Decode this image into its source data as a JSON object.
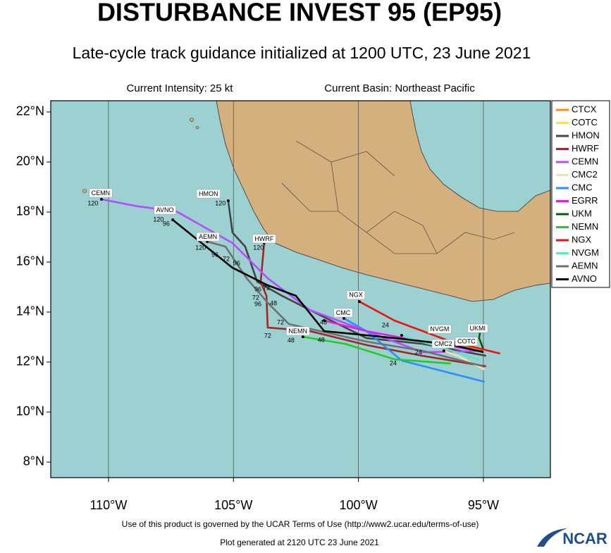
{
  "chart_data": {
    "type": "track",
    "title": "DISTURBANCE INVEST 95 (EP95)",
    "subtitle": "Late-cycle track guidance initialized at 1200 UTC, 23 June 2021",
    "intensity": "Current Intensity: 25 kt",
    "basin": "Current Basin: Northeast Pacific",
    "footer": "Use of this product is governed by the UCAR Terms of Use (http://www2.ucar.edu/terms-of-use)",
    "generated": "Plot generated at 2120 UTC  23 June 2021",
    "logo": "NCAR",
    "legend": "right",
    "xlim": [
      -112.31,
      -92.32
    ],
    "ylim": [
      7.38,
      22.45
    ],
    "xticks": [
      {
        "value": -110,
        "label": "110°W"
      },
      {
        "value": -105,
        "label": "105°W"
      },
      {
        "value": -100,
        "label": "100°W"
      },
      {
        "value": -95,
        "label": "95°W"
      }
    ],
    "yticks": [
      {
        "value": 8,
        "label": "8°N"
      },
      {
        "value": 10,
        "label": "10°N"
      },
      {
        "value": 12,
        "label": "12°N"
      },
      {
        "value": 14,
        "label": "14°N"
      },
      {
        "value": 16,
        "label": "16°N"
      },
      {
        "value": 18,
        "label": "18°N"
      },
      {
        "value": 20,
        "label": "20°N"
      },
      {
        "value": 22,
        "label": "22°N"
      }
    ],
    "series": [
      {
        "name": "CTCX",
        "color": "#ff8c1a",
        "x": [
          -95.0,
          -96.0,
          -96.24
        ],
        "values": [
          12.45,
          12.68,
          12.73
        ]
      },
      {
        "name": "COTC",
        "color": "#ffee00",
        "x": [
          -94.95,
          -95.74,
          -95.88
        ],
        "values": [
          12.45,
          12.68,
          12.87
        ]
      },
      {
        "name": "HMON",
        "color": "#444444",
        "x": [
          -94.89,
          -97.43,
          -99.68,
          -101.66,
          -103.06,
          -104.05,
          -104.53,
          -105.04,
          -105.21
        ],
        "values": [
          12.25,
          12.73,
          12.96,
          13.94,
          14.65,
          15.21,
          16.62,
          17.18,
          18.45
        ]
      },
      {
        "name": "HWRF",
        "color": "#9c2a2a",
        "x": [
          -94.89,
          -97.43,
          -99.68,
          -101.94,
          -103.63,
          -103.68,
          -103.91,
          -103.77
        ],
        "values": [
          11.83,
          12.25,
          12.68,
          13.24,
          13.38,
          14.65,
          15.21,
          16.76
        ]
      },
      {
        "name": "CEMN",
        "color": "#b44cff",
        "x": [
          -95.0,
          -97.43,
          -99.68,
          -101.94,
          -103.63,
          -105.04,
          -107.29,
          -108.84,
          -110.28
        ],
        "values": [
          12.45,
          12.39,
          13.24,
          14.08,
          15.35,
          16.76,
          18.03,
          18.23,
          18.51
        ]
      },
      {
        "name": "CMC2",
        "color": "#f5deb3",
        "x": [
          -94.95,
          -96.02,
          -96.58
        ],
        "values": [
          11.7,
          12.25,
          12.45
        ]
      },
      {
        "name": "CMC",
        "color": "#2b8fff",
        "x": [
          -94.95,
          -98.27,
          -99.68,
          -100.58
        ],
        "values": [
          11.21,
          12.06,
          13.24,
          13.75
        ]
      },
      {
        "name": "EGRR",
        "color": "#e020e0",
        "x": [
          -95.0,
          -97.43,
          -99.68,
          -101.37
        ],
        "values": [
          12.42,
          12.82,
          13.24,
          13.66
        ]
      },
      {
        "name": "UKM",
        "color": "#0b5a0b",
        "x": [
          -95.0,
          -95.17,
          -95.12
        ],
        "values": [
          12.51,
          12.96,
          13.3
        ]
      },
      {
        "name": "NEMN",
        "color": "#22cc22",
        "x": [
          -96.3,
          -98.55,
          -100.53,
          -102.22
        ],
        "values": [
          11.94,
          12.11,
          12.73,
          13.01
        ]
      },
      {
        "name": "NGX",
        "color": "#ee1111",
        "x": [
          -94.33,
          -96.3,
          -98.55,
          -99.96
        ],
        "values": [
          12.34,
          12.82,
          13.66,
          14.42
        ]
      },
      {
        "name": "NVGM",
        "color": "#66e0c0",
        "x": [
          -95.17,
          -96.86,
          -97.71,
          -98.27
        ],
        "values": [
          12.08,
          12.65,
          12.87,
          13.07
        ]
      },
      {
        "name": "AEMN",
        "color": "#707070",
        "x": [
          -95.0,
          -97.43,
          -99.68,
          -102.78,
          -103.63,
          -104.47,
          -105.32,
          -106.05
        ],
        "values": [
          11.83,
          12.45,
          12.82,
          13.52,
          14.37,
          15.35,
          16.62,
          16.82
        ]
      },
      {
        "name": "AVNO",
        "color": "#000000",
        "x": [
          -95.0,
          -96.3,
          -98.55,
          -101.37,
          -102.5,
          -103.63,
          -105.04,
          -106.45,
          -107.43
        ],
        "values": [
          12.4,
          12.7,
          12.96,
          13.24,
          14.65,
          15.07,
          15.77,
          16.9,
          17.69
        ]
      }
    ],
    "annotations": [
      {
        "text": "CEMN",
        "x": -110.31,
        "y": 18.76
      },
      {
        "text": "AVNO",
        "x": -107.74,
        "y": 18.08
      },
      {
        "text": "HMON",
        "x": -106.0,
        "y": 18.73
      },
      {
        "text": "HWRF",
        "x": -103.77,
        "y": 16.93
      },
      {
        "text": "AEMN",
        "x": -106.02,
        "y": 17.01
      },
      {
        "text": "NGX",
        "x": -100.1,
        "y": 14.68
      },
      {
        "text": "CMC",
        "x": -100.61,
        "y": 13.97
      },
      {
        "text": "NEMN",
        "x": -102.42,
        "y": 13.24
      },
      {
        "text": "NVGM",
        "x": -96.75,
        "y": 13.32
      },
      {
        "text": "CMC2",
        "x": -96.61,
        "y": 12.73
      },
      {
        "text": "COTC",
        "x": -95.68,
        "y": 12.82
      },
      {
        "text": "UKMI",
        "x": -95.23,
        "y": 13.35
      }
    ],
    "hour_labels": [
      {
        "text": "120",
        "x": -110.62,
        "y": 18.34
      },
      {
        "text": "120",
        "x": -108.0,
        "y": 17.69
      },
      {
        "text": "96",
        "x": -107.69,
        "y": 17.52
      },
      {
        "text": "120",
        "x": -105.52,
        "y": 18.34
      },
      {
        "text": "120",
        "x": -104.0,
        "y": 16.56
      },
      {
        "text": "120",
        "x": -106.31,
        "y": 16.56
      },
      {
        "text": "96",
        "x": -105.74,
        "y": 16.28
      },
      {
        "text": "72",
        "x": -105.29,
        "y": 16.11
      },
      {
        "text": "96",
        "x": -104.87,
        "y": 15.94
      },
      {
        "text": "72",
        "x": -103.68,
        "y": 14.96
      },
      {
        "text": "96",
        "x": -104.02,
        "y": 14.9
      },
      {
        "text": "72",
        "x": -104.11,
        "y": 14.56
      },
      {
        "text": "96",
        "x": -104.02,
        "y": 14.31
      },
      {
        "text": "48",
        "x": -103.4,
        "y": 14.34
      },
      {
        "text": "72",
        "x": -103.12,
        "y": 13.58
      },
      {
        "text": "72",
        "x": -103.63,
        "y": 13.04
      },
      {
        "text": "48",
        "x": -102.7,
        "y": 12.85
      },
      {
        "text": "48",
        "x": -101.49,
        "y": 12.87
      },
      {
        "text": "48",
        "x": -101.4,
        "y": 13.58
      },
      {
        "text": "24",
        "x": -98.92,
        "y": 13.46
      },
      {
        "text": "24",
        "x": -97.6,
        "y": 12.37
      },
      {
        "text": "24",
        "x": -98.61,
        "y": 11.94
      }
    ]
  }
}
